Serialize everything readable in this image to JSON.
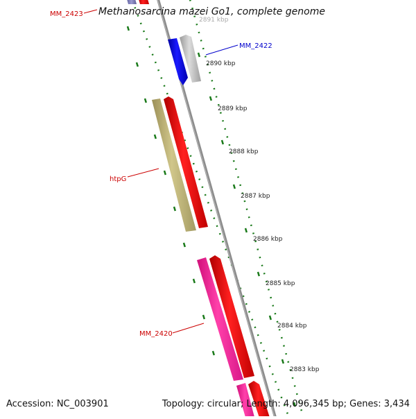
{
  "title": "Methanosarcina mazei Go1, complete genome",
  "accession": "Accession: NC_003901",
  "summary": "Topology: circular; Length: 4,096,345 bp; Genes: 3,434",
  "ticks": [
    {
      "label": "2891 kbp",
      "faded": true
    },
    {
      "label": "2890 kbp"
    },
    {
      "label": "2889 kbp"
    },
    {
      "label": "2888 kbp"
    },
    {
      "label": "2887 kbp"
    },
    {
      "label": "2886 kbp"
    },
    {
      "label": "2885 kbp"
    },
    {
      "label": "2884 kbp"
    },
    {
      "label": "2883 kbp"
    }
  ],
  "gene_labels": [
    {
      "name": "MM_2423",
      "color": "#cc0000"
    },
    {
      "name": "MM_2422",
      "color": "#0000cc"
    },
    {
      "name": "htpG",
      "color": "#cc0000"
    },
    {
      "name": "MM_2420",
      "color": "#cc0000"
    }
  ],
  "colors": {
    "backbone": "#8c8c8c",
    "tick_dots": "#1a7a1a",
    "gene_red": "#ff0000",
    "gene_blue": "#0000ff",
    "gene_grey": "#c8c8c8",
    "gene_olive": "#c2b878",
    "gene_pink": "#ff2fa0"
  }
}
